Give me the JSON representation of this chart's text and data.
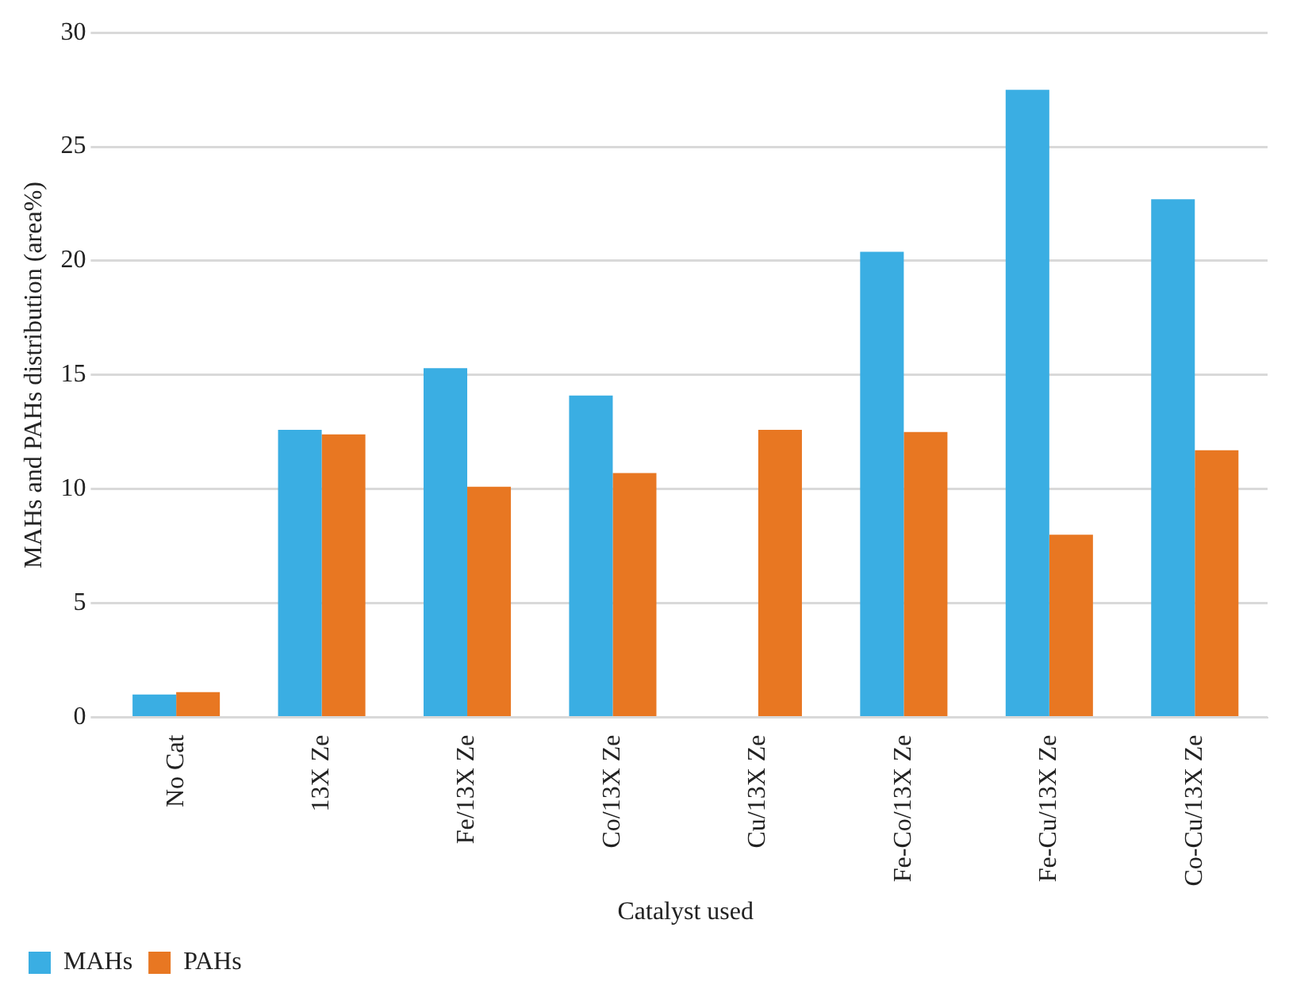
{
  "chart_data": {
    "type": "bar",
    "xlabel": "Catalyst used",
    "ylabel": "MAHs and PAHs distribution (area%)",
    "categories": [
      "No Cat",
      "13X Ze",
      "Fe/13X Ze",
      "Co/13X Ze",
      "Cu/13X Ze",
      "Fe-Co/13X Ze",
      "Fe-Cu/13X Ze",
      "Co-Cu/13X Ze"
    ],
    "series": [
      {
        "name": "MAHs",
        "color": "#3aaee3",
        "values": [
          1.0,
          12.6,
          15.3,
          14.1,
          0,
          20.4,
          27.5,
          22.7
        ]
      },
      {
        "name": "PAHs",
        "color": "#e87722",
        "values": [
          1.1,
          12.4,
          10.1,
          10.7,
          12.6,
          12.5,
          8.0,
          11.7
        ]
      }
    ],
    "ylim": [
      0,
      30
    ],
    "yticks": [
      0,
      5,
      10,
      15,
      20,
      25,
      30
    ],
    "grid": "y",
    "legend": "bottom left"
  }
}
